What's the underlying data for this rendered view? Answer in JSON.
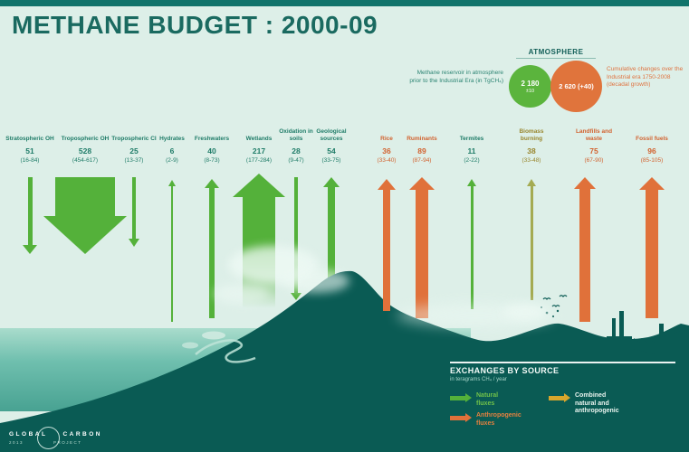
{
  "title": "METHANE BUDGET : 2000-09",
  "atmosphere": {
    "heading": "ATMOSPHERE",
    "reservoir_note": "Methane reservoir in atmosphere prior to the Industrial Era (in TgCH₄)",
    "reservoir_value": "2 180",
    "reservoir_uncertainty": "±10",
    "change_value": "2 620 (+40)",
    "change_note": "Cumulative changes over the Industrial era 1750-2008 (decadal growth)"
  },
  "legend": {
    "title": "EXCHANGES BY SOURCE",
    "subtitle": "in teragrams CH₄ / year",
    "items": [
      {
        "label": "Natural fluxes",
        "category": "natural"
      },
      {
        "label": "Anthropogenic fluxes",
        "category": "anthropogenic"
      },
      {
        "label": "Combined natural and anthropogenic",
        "category": "combined"
      }
    ]
  },
  "logo": {
    "word1": "GLOBAL",
    "word2": "CARBON",
    "year": "2013",
    "word3": "PROJECT"
  },
  "colors": {
    "background": "#ddefe8",
    "dark_teal": "#0a5b54",
    "title_text": "#1a6a60",
    "natural": "#54b13a",
    "anthropogenic": "#e0713a",
    "combined": "#a4ab52",
    "legend_yellow": "#d8a62c",
    "natural_text": "#1f7c68",
    "anthropogenic_text": "#d2622f",
    "combined_text": "#99862e",
    "legend_natural_text": "#71c24a",
    "legend_anthropogenic_text": "#e6813f",
    "legend_combined_text": "#e9f4ef"
  },
  "chart_data": {
    "type": "flux-diagram",
    "title": "METHANE BUDGET : 2000-09",
    "units": "Tg CH4 / year",
    "atmosphere_reservoir_preindustrial": "2 180 ±10",
    "atmosphere_cumulative_change_1750_2008": "2 620 (+40)",
    "series": [
      {
        "name": "Stratospheric OH",
        "value": 51,
        "range": [
          16,
          84
        ],
        "category": "natural",
        "direction": "sink"
      },
      {
        "name": "Tropospheric OH",
        "value": 528,
        "range": [
          454,
          617
        ],
        "category": "natural",
        "direction": "sink"
      },
      {
        "name": "Tropospheric Cl",
        "value": 25,
        "range": [
          13,
          37
        ],
        "category": "natural",
        "direction": "sink"
      },
      {
        "name": "Hydrates",
        "value": 6,
        "range": [
          2,
          9
        ],
        "category": "natural",
        "direction": "source"
      },
      {
        "name": "Freshwaters",
        "value": 40,
        "range": [
          8,
          73
        ],
        "category": "natural",
        "direction": "source"
      },
      {
        "name": "Wetlands",
        "value": 217,
        "range": [
          177,
          284
        ],
        "category": "natural",
        "direction": "source"
      },
      {
        "name": "Oxidation in soils",
        "value": 28,
        "range": [
          9,
          47
        ],
        "category": "natural",
        "direction": "sink"
      },
      {
        "name": "Geological sources",
        "value": 54,
        "range": [
          33,
          75
        ],
        "category": "natural",
        "direction": "source"
      },
      {
        "name": "Rice",
        "value": 36,
        "range": [
          33,
          40
        ],
        "category": "anthropogenic",
        "direction": "source"
      },
      {
        "name": "Ruminants",
        "value": 89,
        "range": [
          87,
          94
        ],
        "category": "anthropogenic",
        "direction": "source"
      },
      {
        "name": "Termites",
        "value": 11,
        "range": [
          2,
          22
        ],
        "category": "natural",
        "direction": "source"
      },
      {
        "name": "Biomass burning",
        "value": 38,
        "range": [
          33,
          48
        ],
        "category": "combined",
        "direction": "source"
      },
      {
        "name": "Landfills and waste",
        "value": 75,
        "range": [
          67,
          90
        ],
        "category": "anthropogenic",
        "direction": "source"
      },
      {
        "name": "Fossil fuels",
        "value": 96,
        "range": [
          85,
          105
        ],
        "category": "anthropogenic",
        "direction": "source"
      }
    ]
  }
}
